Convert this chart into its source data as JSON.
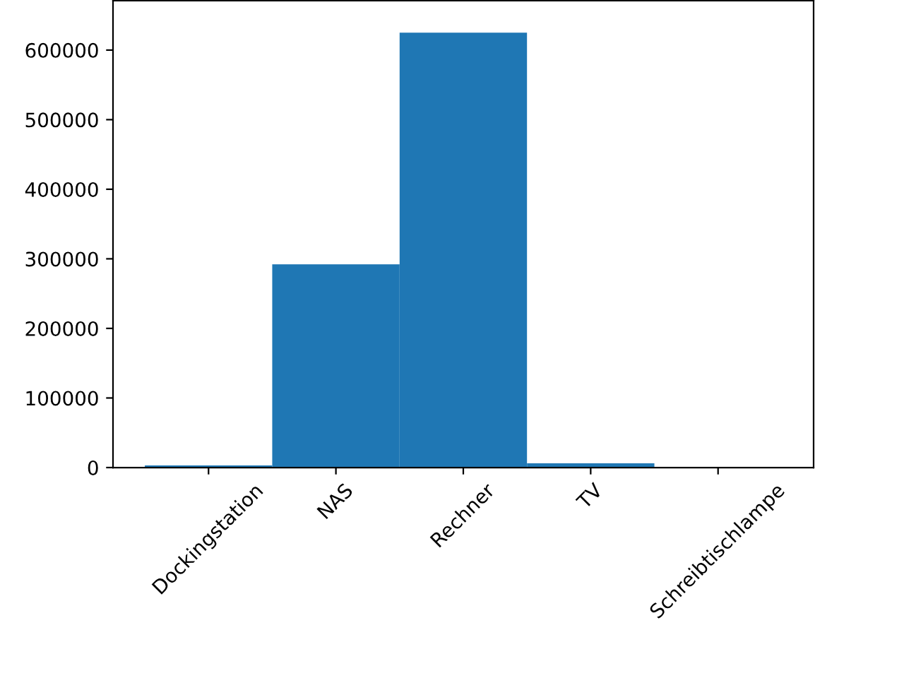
{
  "chart_data": {
    "type": "bar",
    "categories": [
      "Dockingstation",
      "NAS",
      "Rechner",
      "TV",
      "Schreibtischlampe"
    ],
    "values": [
      3000,
      292000,
      625000,
      6000,
      0
    ],
    "color": "#1f77b4",
    "ylim": [
      0,
      671000
    ],
    "yticks": [
      0,
      100000,
      200000,
      300000,
      400000,
      500000,
      600000
    ],
    "grid": false,
    "legend": false
  }
}
